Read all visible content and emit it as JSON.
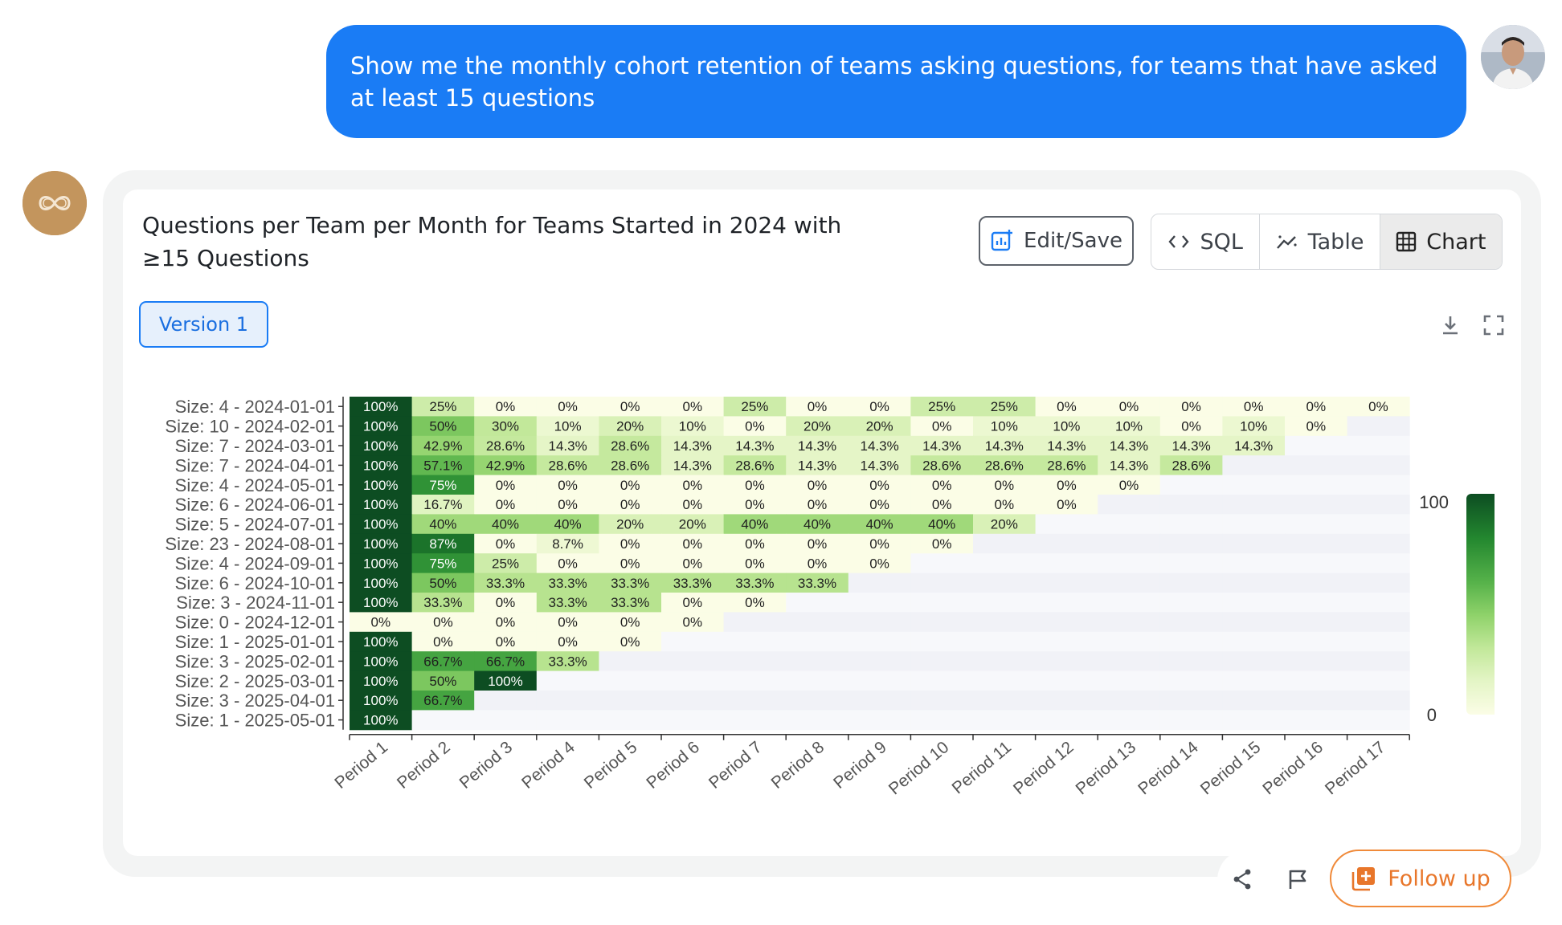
{
  "user_message": {
    "text": "Show me the monthly cohort retention of teams asking questions, for teams that have asked at least 15 questions"
  },
  "card": {
    "title": "Questions per Team per Month for Teams Started in 2024 with ≥15 Questions",
    "edit_label": "Edit/Save",
    "tabs": [
      {
        "label": "SQL",
        "icon": "code-icon"
      },
      {
        "label": "Table",
        "icon": "trend-icon"
      },
      {
        "label": "Chart",
        "icon": "grid-icon",
        "active": true
      }
    ],
    "version_label": "Version 1"
  },
  "footer": {
    "follow_up_label": "Follow up"
  },
  "colors": {
    "user_bubble": "#1a7cf5",
    "accent_orange": "#e8762a",
    "heat_max": "#0d4d22",
    "heat_min": "#fbfde6"
  },
  "chart_data": {
    "type": "heatmap",
    "title": "",
    "row_labels": [
      "Size: 4 - 2024-01-01",
      "Size: 10 - 2024-02-01",
      "Size: 7 - 2024-03-01",
      "Size: 7 - 2024-04-01",
      "Size: 4 - 2024-05-01",
      "Size: 6 - 2024-06-01",
      "Size: 5 - 2024-07-01",
      "Size: 23 - 2024-08-01",
      "Size: 4 - 2024-09-01",
      "Size: 6 - 2024-10-01",
      "Size: 3 - 2024-11-01",
      "Size: 0 - 2024-12-01",
      "Size: 1 - 2025-01-01",
      "Size: 3 - 2025-02-01",
      "Size: 2 - 2025-03-01",
      "Size: 3 - 2025-04-01",
      "Size: 1 - 2025-05-01"
    ],
    "column_labels": [
      "Period 1",
      "Period 2",
      "Period 3",
      "Period 4",
      "Period 5",
      "Period 6",
      "Period 7",
      "Period 8",
      "Period 9",
      "Period 10",
      "Period 11",
      "Period 12",
      "Period 13",
      "Period 14",
      "Period 15",
      "Period 16",
      "Period 17"
    ],
    "values": [
      [
        100,
        25,
        0,
        0,
        0,
        0,
        25,
        0,
        0,
        25,
        25,
        0,
        0,
        0,
        0,
        0,
        0
      ],
      [
        100,
        50,
        30,
        10,
        20,
        10,
        0,
        20,
        20,
        0,
        10,
        10,
        10,
        0,
        10,
        0,
        null
      ],
      [
        100,
        42.9,
        28.6,
        14.3,
        28.6,
        14.3,
        14.3,
        14.3,
        14.3,
        14.3,
        14.3,
        14.3,
        14.3,
        14.3,
        14.3,
        null,
        null
      ],
      [
        100,
        57.1,
        42.9,
        28.6,
        28.6,
        14.3,
        28.6,
        14.3,
        14.3,
        28.6,
        28.6,
        28.6,
        14.3,
        28.6,
        null,
        null,
        null
      ],
      [
        100,
        75,
        0,
        0,
        0,
        0,
        0,
        0,
        0,
        0,
        0,
        0,
        0,
        null,
        null,
        null,
        null
      ],
      [
        100,
        16.7,
        0,
        0,
        0,
        0,
        0,
        0,
        0,
        0,
        0,
        0,
        null,
        null,
        null,
        null,
        null
      ],
      [
        100,
        40,
        40,
        40,
        20,
        20,
        40,
        40,
        40,
        40,
        20,
        null,
        null,
        null,
        null,
        null,
        null
      ],
      [
        100,
        87,
        0,
        8.7,
        0,
        0,
        0,
        0,
        0,
        0,
        null,
        null,
        null,
        null,
        null,
        null,
        null
      ],
      [
        100,
        75,
        25,
        0,
        0,
        0,
        0,
        0,
        0,
        null,
        null,
        null,
        null,
        null,
        null,
        null,
        null
      ],
      [
        100,
        50,
        33.3,
        33.3,
        33.3,
        33.3,
        33.3,
        33.3,
        null,
        null,
        null,
        null,
        null,
        null,
        null,
        null,
        null
      ],
      [
        100,
        33.3,
        0,
        33.3,
        33.3,
        0,
        0,
        null,
        null,
        null,
        null,
        null,
        null,
        null,
        null,
        null,
        null
      ],
      [
        0,
        0,
        0,
        0,
        0,
        0,
        null,
        null,
        null,
        null,
        null,
        null,
        null,
        null,
        null,
        null,
        null
      ],
      [
        100,
        0,
        0,
        0,
        0,
        null,
        null,
        null,
        null,
        null,
        null,
        null,
        null,
        null,
        null,
        null,
        null
      ],
      [
        100,
        66.7,
        66.7,
        33.3,
        null,
        null,
        null,
        null,
        null,
        null,
        null,
        null,
        null,
        null,
        null,
        null,
        null
      ],
      [
        100,
        50,
        100,
        null,
        null,
        null,
        null,
        null,
        null,
        null,
        null,
        null,
        null,
        null,
        null,
        null,
        null
      ],
      [
        100,
        66.7,
        null,
        null,
        null,
        null,
        null,
        null,
        null,
        null,
        null,
        null,
        null,
        null,
        null,
        null,
        null
      ],
      [
        100,
        null,
        null,
        null,
        null,
        null,
        null,
        null,
        null,
        null,
        null,
        null,
        null,
        null,
        null,
        null,
        null
      ]
    ],
    "value_suffix": "%",
    "colorbar": {
      "min": 0,
      "max": 100,
      "min_label": "0",
      "max_label": "100"
    }
  }
}
